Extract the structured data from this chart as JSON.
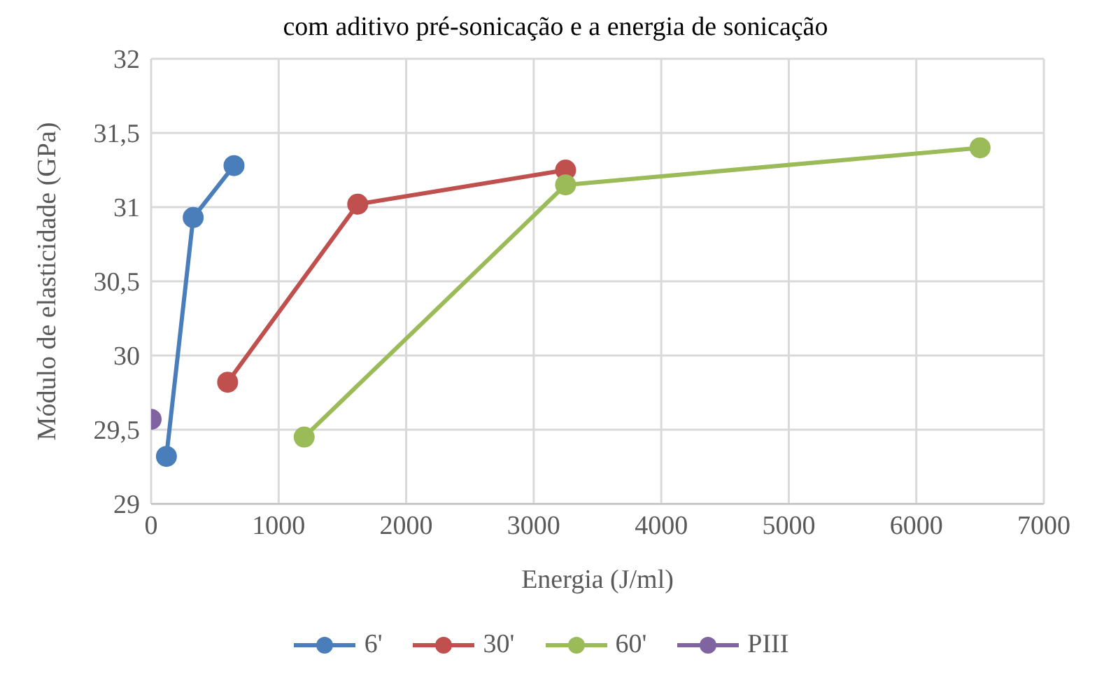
{
  "chart_data": {
    "type": "line",
    "title": "com aditivo pré-sonicação e a energia de sonicação",
    "xlabel": "Energia (J/ml)",
    "ylabel": "Módulo de elasticidade (GPa)",
    "xlim": [
      0,
      7000
    ],
    "xticks": [
      0,
      1000,
      2000,
      3000,
      4000,
      5000,
      6000,
      7000
    ],
    "ylim": [
      29,
      32
    ],
    "yticks": [
      {
        "value": 29,
        "label": "29"
      },
      {
        "value": 29.5,
        "label": "29,5"
      },
      {
        "value": 30,
        "label": "30"
      },
      {
        "value": 30.5,
        "label": "30,5"
      },
      {
        "value": 31,
        "label": "31"
      },
      {
        "value": 31.5,
        "label": "31,5"
      },
      {
        "value": 32,
        "label": "32"
      }
    ],
    "grid": true,
    "legend": "bottom",
    "marker": "circle",
    "line_style": "solid",
    "series": [
      {
        "name": "6'",
        "color": "#4a7ebb",
        "x": [
          120,
          330,
          650
        ],
        "values": [
          29.32,
          30.93,
          31.28
        ]
      },
      {
        "name": "30'",
        "color": "#c0504d",
        "x": [
          600,
          1620,
          3250
        ],
        "values": [
          29.82,
          31.02,
          31.25
        ]
      },
      {
        "name": "60'",
        "color": "#9bbb59",
        "x": [
          1200,
          3250,
          6500
        ],
        "values": [
          29.45,
          31.15,
          31.4
        ]
      },
      {
        "name": "PIII",
        "color": "#8064a2",
        "x": [
          0
        ],
        "values": [
          29.57
        ]
      }
    ]
  }
}
